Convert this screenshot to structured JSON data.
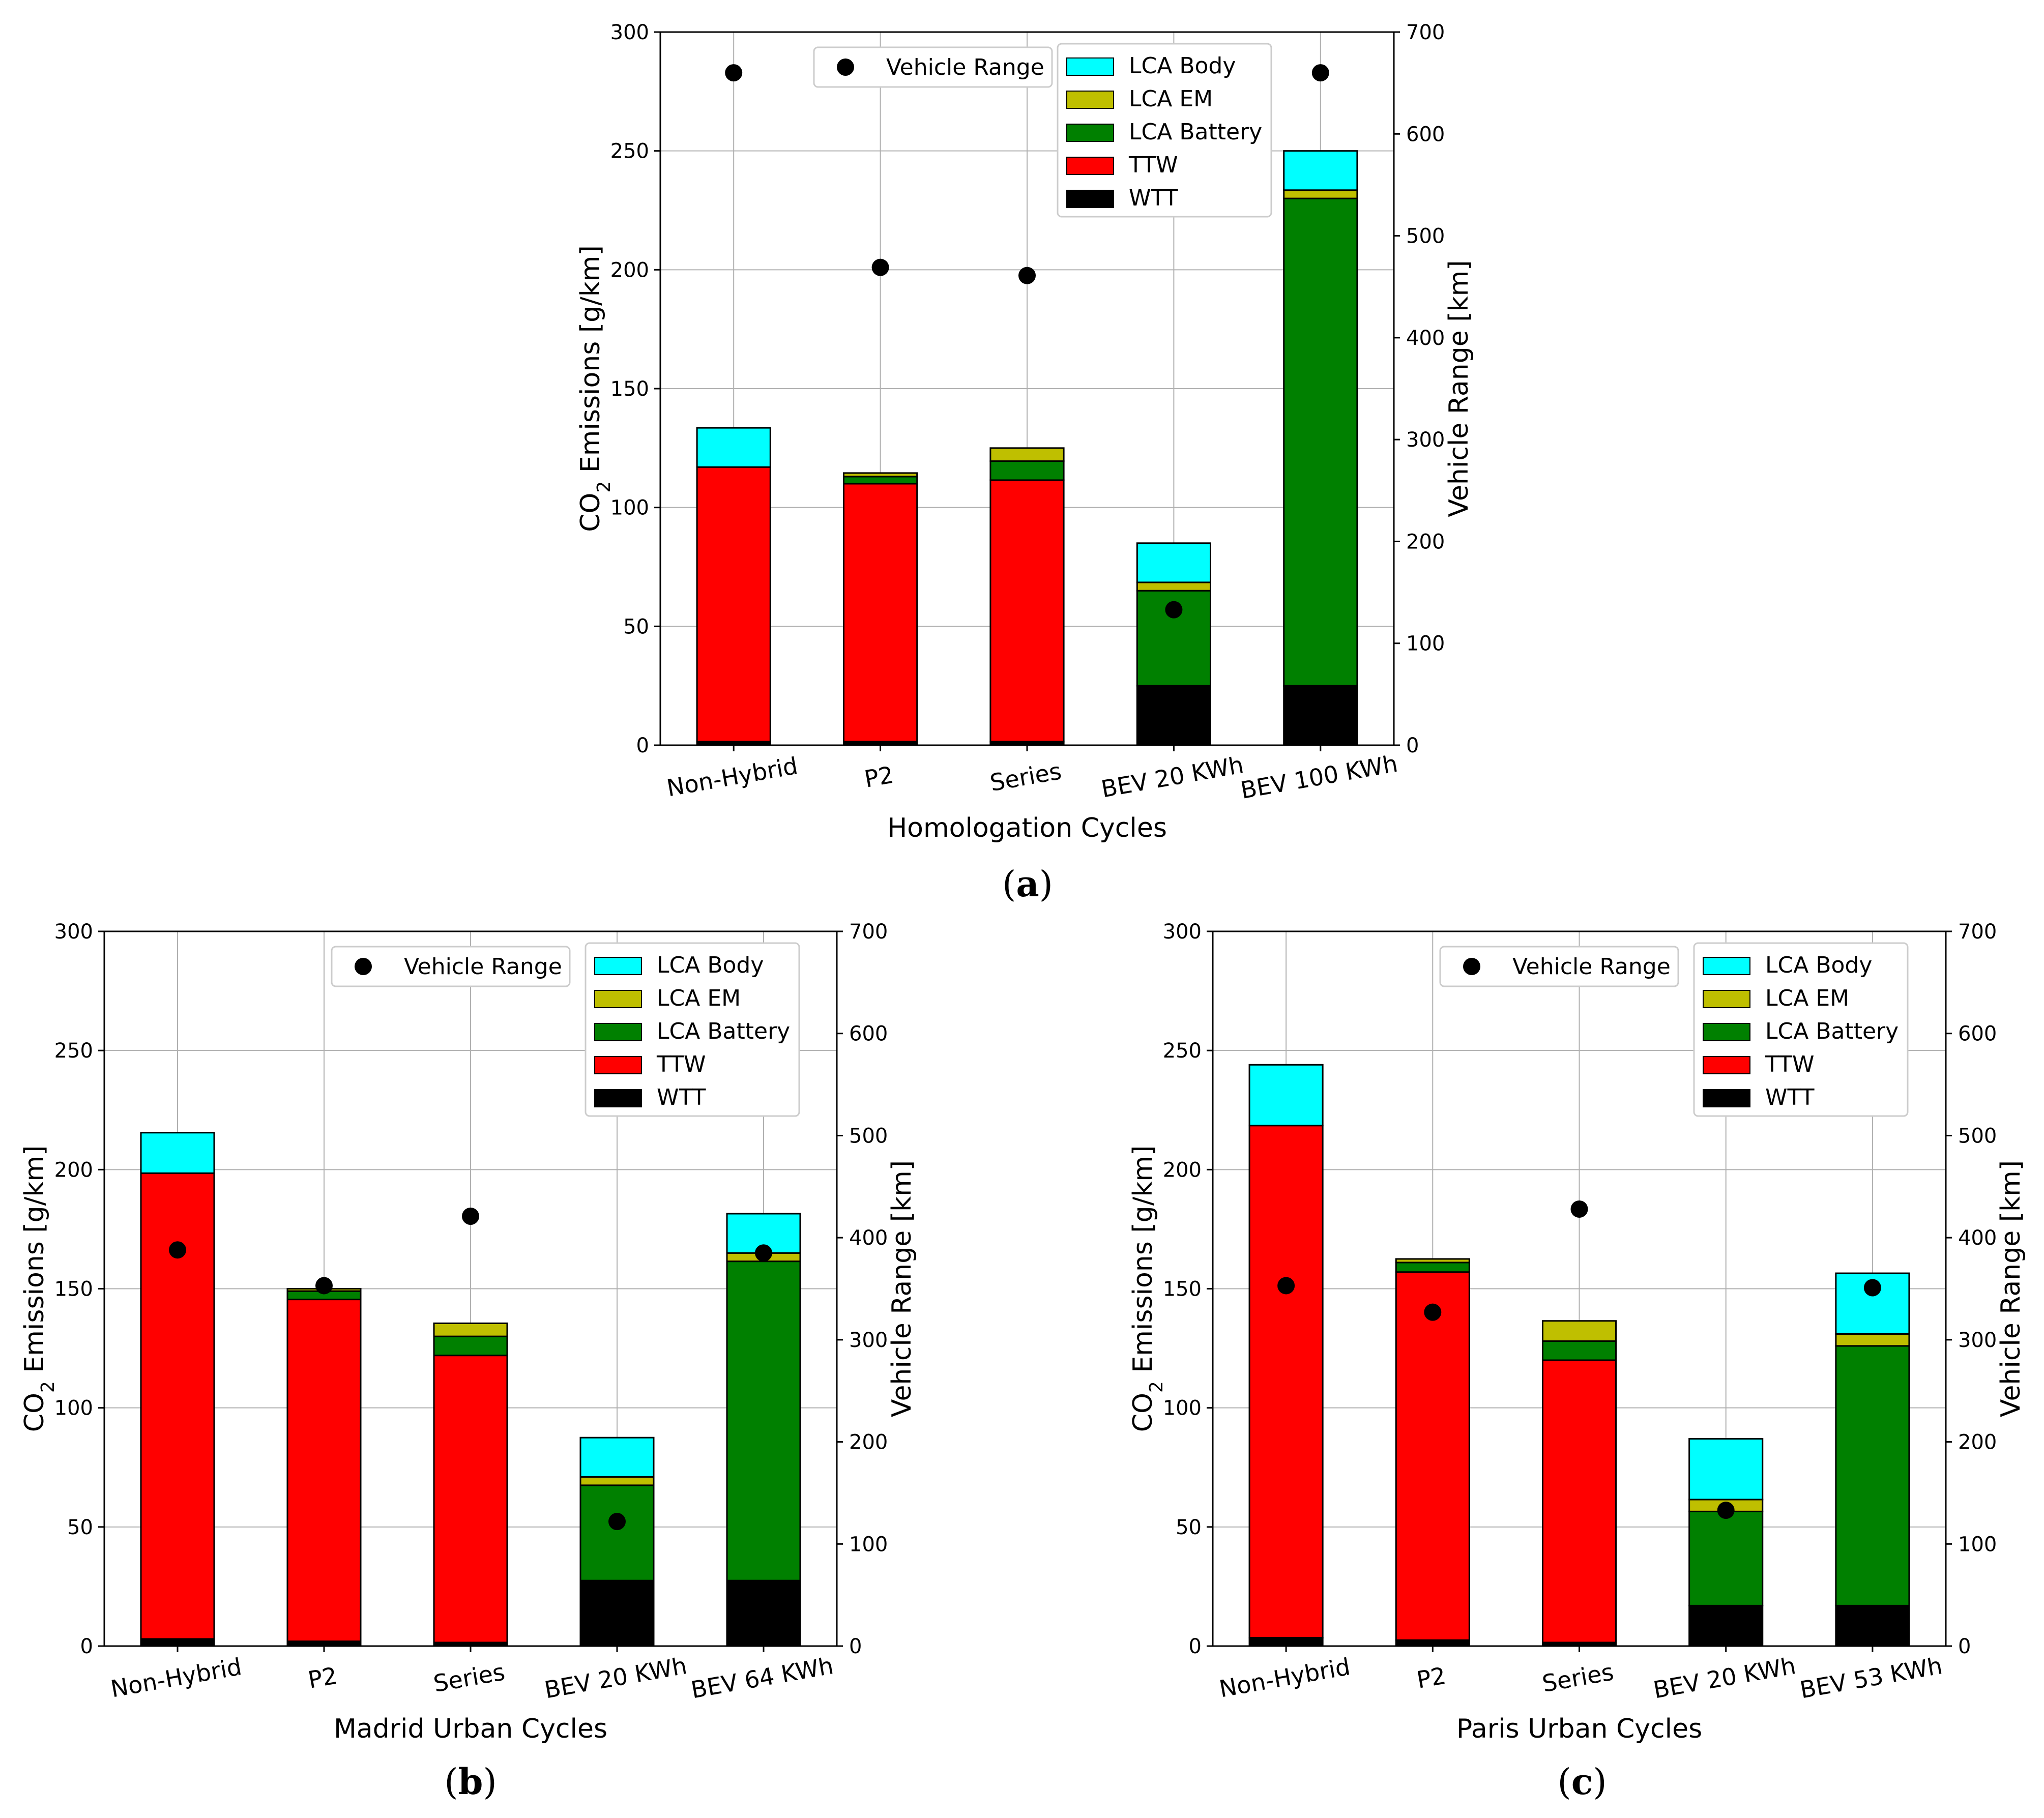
{
  "colors": {
    "WTT": "#000000",
    "TTW": "#ff0000",
    "LCA Battery": "#008000",
    "LCA EM": "#bfbf00",
    "LCA Body": "#00ffff",
    "range_marker": "#000000"
  },
  "chart_data": [
    {
      "id": "a",
      "type": "bar",
      "stacked": true,
      "caption_letter": "a",
      "xlabel": "Homologation Cycles",
      "ylabel": "CO₂ Emissions [g/km]",
      "ylabel_base": "CO",
      "ylabel_sub": "2",
      "ylabel_rest": " Emissions [g/km]",
      "y2label": "Vehicle Range [km]",
      "ylim": [
        0,
        300
      ],
      "yticks": [
        "0",
        "50",
        "100",
        "150",
        "200",
        "250",
        "300"
      ],
      "y2lim": [
        0,
        700
      ],
      "y2ticks": [
        "0",
        "100",
        "200",
        "300",
        "400",
        "500",
        "600",
        "700"
      ],
      "categories": [
        "Non-Hybrid",
        "P2",
        "Series",
        "BEV 20 KWh",
        "BEV 100 KWh"
      ],
      "series": [
        {
          "name": "WTT",
          "values": [
            1.5,
            1.5,
            1.5,
            25,
            25
          ]
        },
        {
          "name": "TTW",
          "values": [
            115.5,
            108.5,
            110,
            0,
            0
          ]
        },
        {
          "name": "LCA Battery",
          "values": [
            0,
            3,
            8,
            40,
            205
          ]
        },
        {
          "name": "LCA EM",
          "values": [
            0,
            1.5,
            5.5,
            3.5,
            3.5
          ]
        },
        {
          "name": "LCA Body",
          "values": [
            16.5,
            0,
            0,
            16.5,
            16.5
          ]
        }
      ],
      "range": {
        "name": "Vehicle Range",
        "values": [
          660,
          469,
          461,
          133,
          660
        ]
      },
      "legend_bars": [
        "LCA Body",
        "LCA EM",
        "LCA Battery",
        "TTW",
        "WTT"
      ],
      "legend_range_label": "Vehicle Range",
      "grid": true
    },
    {
      "id": "b",
      "type": "bar",
      "stacked": true,
      "caption_letter": "b",
      "xlabel": "Madrid Urban Cycles",
      "ylabel": "CO₂ Emissions [g/km]",
      "ylabel_base": "CO",
      "ylabel_sub": "2",
      "ylabel_rest": " Emissions [g/km]",
      "y2label": "Vehicle Range [km]",
      "ylim": [
        0,
        300
      ],
      "yticks": [
        "0",
        "50",
        "100",
        "150",
        "200",
        "250",
        "300"
      ],
      "y2lim": [
        0,
        700
      ],
      "y2ticks": [
        "0",
        "100",
        "200",
        "300",
        "400",
        "500",
        "600",
        "700"
      ],
      "categories": [
        "Non-Hybrid",
        "P2",
        "Series",
        "BEV 20 KWh",
        "BEV 64 KWh"
      ],
      "series": [
        {
          "name": "WTT",
          "values": [
            3,
            2,
            1.5,
            27.5,
            27.5
          ]
        },
        {
          "name": "TTW",
          "values": [
            195.5,
            143.5,
            120.5,
            0,
            0
          ]
        },
        {
          "name": "LCA Battery",
          "values": [
            0,
            3.5,
            8,
            40,
            134
          ]
        },
        {
          "name": "LCA EM",
          "values": [
            0,
            1,
            5.5,
            3.5,
            3.5
          ]
        },
        {
          "name": "LCA Body",
          "values": [
            17,
            0,
            0,
            16.5,
            16.5
          ]
        }
      ],
      "range": {
        "name": "Vehicle Range",
        "values": [
          388,
          353,
          421,
          122,
          385
        ]
      },
      "legend_bars": [
        "LCA Body",
        "LCA EM",
        "LCA Battery",
        "TTW",
        "WTT"
      ],
      "legend_range_label": "Vehicle Range",
      "grid": true
    },
    {
      "id": "c",
      "type": "bar",
      "stacked": true,
      "caption_letter": "c",
      "xlabel": "Paris Urban Cycles",
      "ylabel": "CO₂ Emissions [g/km]",
      "ylabel_base": "CO",
      "ylabel_sub": "2",
      "ylabel_rest": " Emissions [g/km]",
      "y2label": "Vehicle Range [km]",
      "ylim": [
        0,
        300
      ],
      "yticks": [
        "0",
        "50",
        "100",
        "150",
        "200",
        "250",
        "300"
      ],
      "y2lim": [
        0,
        700
      ],
      "y2ticks": [
        "0",
        "100",
        "200",
        "300",
        "400",
        "500",
        "600",
        "700"
      ],
      "categories": [
        "Non-Hybrid",
        "P2",
        "Series",
        "BEV 20 KWh",
        "BEV 53 KWh"
      ],
      "series": [
        {
          "name": "WTT",
          "values": [
            3.5,
            2.5,
            1.5,
            17,
            17
          ]
        },
        {
          "name": "TTW",
          "values": [
            215,
            154.5,
            118.5,
            0,
            0
          ]
        },
        {
          "name": "LCA Battery",
          "values": [
            0,
            4,
            8,
            39.5,
            109
          ]
        },
        {
          "name": "LCA EM",
          "values": [
            0,
            1.5,
            8.5,
            5,
            5
          ]
        },
        {
          "name": "LCA Body",
          "values": [
            25.5,
            0,
            0,
            25.5,
            25.5
          ]
        }
      ],
      "range": {
        "name": "Vehicle Range",
        "values": [
          353,
          327,
          428,
          133,
          351
        ]
      },
      "legend_bars": [
        "LCA Body",
        "LCA EM",
        "LCA Battery",
        "TTW",
        "WTT"
      ],
      "legend_range_label": "Vehicle Range",
      "grid": true
    }
  ]
}
